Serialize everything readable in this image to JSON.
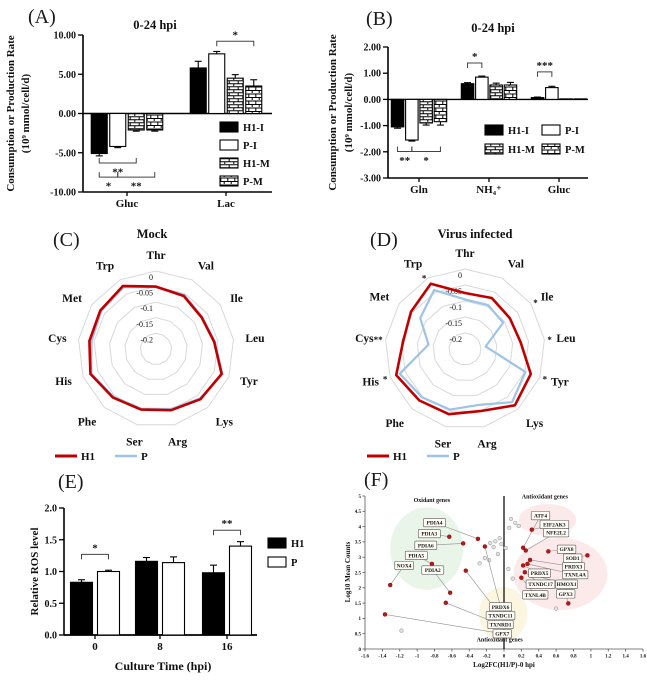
{
  "figure": {
    "background": "#ffffff"
  },
  "colors": {
    "h1_red": "#c00000",
    "p_blue": "#9dc3e6",
    "bar_black": "#000000",
    "sig_gray": "#3a3a3a",
    "scatter_red": "#b01c1c",
    "scatter_gray": "#e3e3e3",
    "region_green": "#d9ecd9",
    "region_pink": "#f9d9da",
    "region_yellow": "#faefc8"
  },
  "chart_data": [
    {
      "panel_tag": "(A)",
      "type": "bar",
      "title": "0-24 hpi",
      "ylabel": [
        "Consumption or Production Rate",
        "(10⁹ mmol/cell/d)"
      ],
      "ylim": [
        -10,
        10
      ],
      "yticks": [
        10,
        5,
        0,
        -5,
        -10
      ],
      "ytick_labels": [
        "10.00",
        "5.00",
        "0.00",
        "-5.00",
        "-10.00"
      ],
      "categories": [
        "Gluc",
        "Lac"
      ],
      "series": [
        {
          "name": "H1-I",
          "fill": "solid-black",
          "values": [
            -5.1,
            5.8
          ],
          "errors": [
            0.3,
            0.85
          ]
        },
        {
          "name": "P-I",
          "fill": "open-white",
          "values": [
            -4.2,
            7.6
          ],
          "errors": [
            0.15,
            0.3
          ]
        },
        {
          "name": "H1-M",
          "fill": "brick-dense",
          "values": [
            -2.1,
            4.5
          ],
          "errors": [
            0.15,
            0.45
          ]
        },
        {
          "name": "P-M",
          "fill": "brick-wide",
          "values": [
            -2.1,
            3.5
          ],
          "errors": [
            0.15,
            0.8
          ]
        }
      ],
      "significance": [
        {
          "category": 1,
          "from": 1,
          "to": 3,
          "at": 9.2,
          "label": "*",
          "side": "above"
        },
        {
          "category": 0,
          "from": 0,
          "to": 2,
          "at": -6.3,
          "label": "**",
          "side": "below"
        },
        {
          "category": 0,
          "from": 0,
          "to": 1,
          "at": -8.1,
          "label": "*",
          "side": "below"
        },
        {
          "category": 0,
          "from": 1,
          "to": 3,
          "at": -8.1,
          "label": "**",
          "side": "below"
        }
      ],
      "legend": [
        "H1-I",
        "P-I",
        "H1-M",
        "P-M"
      ],
      "legend_cols": 1
    },
    {
      "panel_tag": "(B)",
      "type": "bar",
      "title": "0-24 hpi",
      "ylabel": [
        "Consumption or Production Rate",
        "(10⁹ mmol/cell/d)"
      ],
      "ylim": [
        -3,
        2
      ],
      "yticks": [
        2,
        1,
        0,
        -1,
        -2,
        -3
      ],
      "ytick_labels": [
        "2.00",
        "1.00",
        "0.00",
        "-1.00",
        "-2.00",
        "-3.00"
      ],
      "categories": [
        "Gln",
        "NH₄⁺",
        "Gluc"
      ],
      "series": [
        {
          "name": "H1-I",
          "fill": "solid-black",
          "values": [
            -1.05,
            0.6,
            0.07
          ],
          "errors": [
            0.05,
            0.04,
            0.02
          ]
        },
        {
          "name": "P-I",
          "fill": "open-white",
          "values": [
            -1.55,
            0.85,
            0.45
          ],
          "errors": [
            0.04,
            0.04,
            0.05
          ]
        },
        {
          "name": "H1-M",
          "fill": "brick-dense",
          "values": [
            -0.9,
            0.55,
            0.02
          ],
          "errors": [
            0.08,
            0.07,
            0
          ]
        },
        {
          "name": "P-M",
          "fill": "brick-wide",
          "values": [
            -0.85,
            0.55,
            0.02
          ],
          "errors": [
            0.13,
            0.1,
            0
          ]
        }
      ],
      "significance": [
        {
          "category": 1,
          "from": 0,
          "to": 1,
          "at": 1.39,
          "label": "*",
          "side": "above"
        },
        {
          "category": 2,
          "from": 0,
          "to": 1,
          "at": 1.05,
          "label": "***",
          "side": "above"
        },
        {
          "category": 0,
          "from": 0,
          "to": 1,
          "at": -1.99,
          "label": "**",
          "side": "below"
        },
        {
          "category": 0,
          "from": 1,
          "to": 3,
          "at": -1.99,
          "label": "*",
          "side": "below"
        }
      ],
      "legend": [
        "H1-I",
        "P-I",
        "H1-M",
        "P-M"
      ],
      "legend_cols": 2
    },
    {
      "panel_tag": "(C)",
      "type": "radar",
      "title": "Mock",
      "axes": [
        "Thr",
        "Val",
        "Ile",
        "Leu",
        "Tyr",
        "Lys",
        "Arg",
        "Ser",
        "Phe",
        "His",
        "Cys",
        "Met",
        "Trp"
      ],
      "rings": [
        0,
        -0.05,
        -0.1,
        -0.15,
        -0.2
      ],
      "ring_labels": [
        "0",
        "-0.05",
        "-0.1",
        "-0.15",
        "-0.2"
      ],
      "rmin": -0.25,
      "series": [
        {
          "name": "H1",
          "color": "#c00000",
          "values": [
            -0.05,
            -0.058,
            -0.072,
            -0.062,
            -0.025,
            -0.035,
            -0.048,
            -0.05,
            -0.042,
            -0.025,
            -0.035,
            -0.033,
            -0.022
          ]
        },
        {
          "name": "P",
          "color": "#9dc3e6",
          "values": [
            -0.052,
            -0.055,
            -0.07,
            -0.06,
            -0.022,
            -0.038,
            -0.052,
            -0.053,
            -0.045,
            -0.028,
            -0.042,
            -0.036,
            -0.026
          ]
        }
      ],
      "sig": {}
    },
    {
      "panel_tag": "(D)",
      "type": "radar",
      "title": "Virus infected",
      "axes": [
        "Thr",
        "Val",
        "Ile",
        "Leu",
        "Tyr",
        "Lys",
        "Arg",
        "Ser",
        "Phe",
        "His",
        "Cys",
        "Met",
        "Trp"
      ],
      "rings": [
        0,
        -0.05,
        -0.1,
        -0.15,
        -0.2
      ],
      "ring_labels": [
        "0",
        "-0.05",
        "-0.1",
        "-0.15",
        "-0.2"
      ],
      "rmin": -0.25,
      "series": [
        {
          "name": "H1",
          "color": "#c00000",
          "values": [
            -0.075,
            -0.07,
            -0.08,
            -0.075,
            -0.03,
            -0.015,
            -0.05,
            -0.04,
            -0.035,
            -0.02,
            -0.055,
            -0.045,
            -0.02
          ]
        },
        {
          "name": "P",
          "color": "#9dc3e6",
          "values": [
            -0.095,
            -0.095,
            -0.105,
            -0.185,
            -0.048,
            -0.028,
            -0.07,
            -0.055,
            -0.048,
            -0.032,
            -0.135,
            -0.08,
            -0.042
          ]
        }
      ],
      "sig": {
        "Trp": "*",
        "Ile": "*",
        "Leu": "*",
        "Tyr": "*",
        "His": "*",
        "Cys": "**"
      }
    },
    {
      "panel_tag": "(E)",
      "type": "bar",
      "title": "",
      "ylabel": [
        "Relative ROS level"
      ],
      "xlabel": "Culture Time (hpi)",
      "ylim": [
        0,
        2
      ],
      "yticks": [
        0,
        0.5,
        1,
        1.5,
        2
      ],
      "ytick_labels": [
        "0.0",
        "0.5",
        "1.0",
        "1.5",
        "2.0"
      ],
      "categories": [
        "0",
        "8",
        "16"
      ],
      "series": [
        {
          "name": "H1",
          "fill": "solid-black",
          "values": [
            0.83,
            1.16,
            0.98
          ],
          "errors": [
            0.04,
            0.06,
            0.12
          ]
        },
        {
          "name": "P",
          "fill": "open-white",
          "values": [
            1.0,
            1.14,
            1.4
          ],
          "errors": [
            0.02,
            0.09,
            0.07
          ]
        }
      ],
      "significance": [
        {
          "category": 0,
          "from": 0,
          "to": 1,
          "at": 1.27,
          "label": "*",
          "side": "above"
        },
        {
          "category": 2,
          "from": 0,
          "to": 1,
          "at": 1.65,
          "label": "**",
          "side": "above"
        }
      ],
      "legend": [
        "H1",
        "P"
      ],
      "legend_cols": 1
    },
    {
      "panel_tag": "(F)",
      "type": "scatter",
      "xlabel": "Log2FC(H1/P)-0 hpi",
      "ylabel": "Log10 Mean Counts",
      "xlim": [
        -1.6,
        1.6
      ],
      "xtick_step": 0.2,
      "ylim": [
        0,
        5
      ],
      "ytick_step": 0.5,
      "point_color": "#b01c1c",
      "gray_color": "#e3e3e3",
      "regions": [
        {
          "name": "oxidant-ellipse",
          "ellipse": {
            "cx": -0.89,
            "cy": 3.28,
            "rx": 0.42,
            "ry": 1.35
          },
          "color": "#d9ecd9",
          "label": "Oxidant genes",
          "label_pos": [
            -0.83,
            4.8
          ]
        },
        {
          "name": "antioxidant-ellipse-top",
          "ellipse": {
            "cx": 0.5,
            "cy": 4.22,
            "rx": 0.33,
            "ry": 0.52
          },
          "color": "#f9d9da",
          "label": "Antioxidant genes",
          "label_pos": [
            0.47,
            4.92
          ]
        },
        {
          "name": "antioxidant-ellipse-main",
          "ellipse": {
            "cx": 0.65,
            "cy": 2.45,
            "rx": 0.54,
            "ry": 1.18
          },
          "color": "#f9d9da",
          "label": "",
          "label_pos": [
            0,
            0
          ]
        },
        {
          "name": "antioxidant-ellipse-bottom",
          "ellipse": {
            "cx": -0.01,
            "cy": 1.15,
            "rx": 0.28,
            "ry": 0.88
          },
          "color": "#faefc8",
          "label": "Antioxidant genes",
          "label_pos": [
            -0.05,
            0.24
          ]
        }
      ],
      "labeled_points": [
        {
          "gene": "PDIA4",
          "x": -0.3,
          "y": 3.6,
          "lx": -0.8,
          "ly": 4.13
        },
        {
          "gene": "PDIA3",
          "x": -0.63,
          "y": 3.67,
          "lx": -0.86,
          "ly": 3.77
        },
        {
          "gene": "PDIA6",
          "x": -0.47,
          "y": 3.45,
          "lx": -0.9,
          "ly": 3.39
        },
        {
          "gene": "PDIA5",
          "x": -0.83,
          "y": 2.78,
          "lx": -1.01,
          "ly": 3.06
        },
        {
          "gene": "NOX4",
          "x": -1.31,
          "y": 2.09,
          "lx": -1.15,
          "ly": 2.73
        },
        {
          "gene": "PDIA2",
          "x": -0.62,
          "y": 1.84,
          "lx": -0.82,
          "ly": 2.58
        },
        {
          "gene": "PRDX6",
          "x": -0.22,
          "y": 3.35,
          "lx": -0.04,
          "ly": 1.38
        },
        {
          "gene": "TXNDC11",
          "x": -0.44,
          "y": 2.56,
          "lx": -0.04,
          "ly": 1.09
        },
        {
          "gene": "TXNRD1",
          "x": -0.67,
          "y": 1.51,
          "lx": -0.04,
          "ly": 0.8
        },
        {
          "gene": "GPX7",
          "x": -1.37,
          "y": 1.13,
          "lx": -0.02,
          "ly": 0.5
        },
        {
          "gene": "ATF4",
          "x": 0.22,
          "y": 3.31,
          "lx": 0.42,
          "ly": 4.36
        },
        {
          "gene": "EIF2AK3",
          "x": 0.32,
          "y": 3.9,
          "lx": 0.58,
          "ly": 4.07
        },
        {
          "gene": "NFE2L2",
          "x": 0.25,
          "y": 3.22,
          "lx": 0.6,
          "ly": 3.8
        },
        {
          "gene": "GPX8",
          "x": 0.51,
          "y": 3.19,
          "lx": 0.72,
          "ly": 3.26
        },
        {
          "gene": "SOD1",
          "x": 0.96,
          "y": 3.06,
          "lx": 0.79,
          "ly": 2.97
        },
        {
          "gene": "PRDX3",
          "x": 0.3,
          "y": 2.91,
          "lx": 0.8,
          "ly": 2.69
        },
        {
          "gene": "TXNL4A",
          "x": 0.27,
          "y": 2.78,
          "lx": 0.82,
          "ly": 2.43
        },
        {
          "gene": "PRDX5",
          "x": 0.22,
          "y": 2.73,
          "lx": 0.41,
          "ly": 2.48
        },
        {
          "gene": "TXNDC17",
          "x": 0.24,
          "y": 2.51,
          "lx": 0.42,
          "ly": 2.12
        },
        {
          "gene": "HMOX1",
          "x": 0.33,
          "y": 2.42,
          "lx": 0.72,
          "ly": 2.12
        },
        {
          "gene": "TXNL4B",
          "x": 0.2,
          "y": 2.33,
          "lx": 0.36,
          "ly": 1.77
        },
        {
          "gene": "GPX3",
          "x": 0.74,
          "y": 1.49,
          "lx": 0.71,
          "ly": 1.8
        }
      ],
      "gray_points": [
        [
          0.08,
          4.25
        ],
        [
          0.13,
          4.12
        ],
        [
          0.17,
          4.02
        ],
        [
          0.06,
          3.96
        ],
        [
          -0.05,
          3.62
        ],
        [
          -0.1,
          3.52
        ],
        [
          -0.16,
          3.46
        ],
        [
          -0.03,
          3.43
        ],
        [
          -0.12,
          3.33
        ],
        [
          0.02,
          3.3
        ],
        [
          -0.07,
          3.1
        ],
        [
          -0.22,
          2.97
        ],
        [
          -0.17,
          2.9
        ],
        [
          -0.28,
          2.8
        ],
        [
          0.05,
          2.62
        ],
        [
          0.1,
          2.3
        ],
        [
          0.52,
          2.12
        ],
        [
          0.6,
          1.32
        ],
        [
          -1.18,
          0.6
        ],
        [
          0.06,
          0.6
        ]
      ]
    }
  ]
}
